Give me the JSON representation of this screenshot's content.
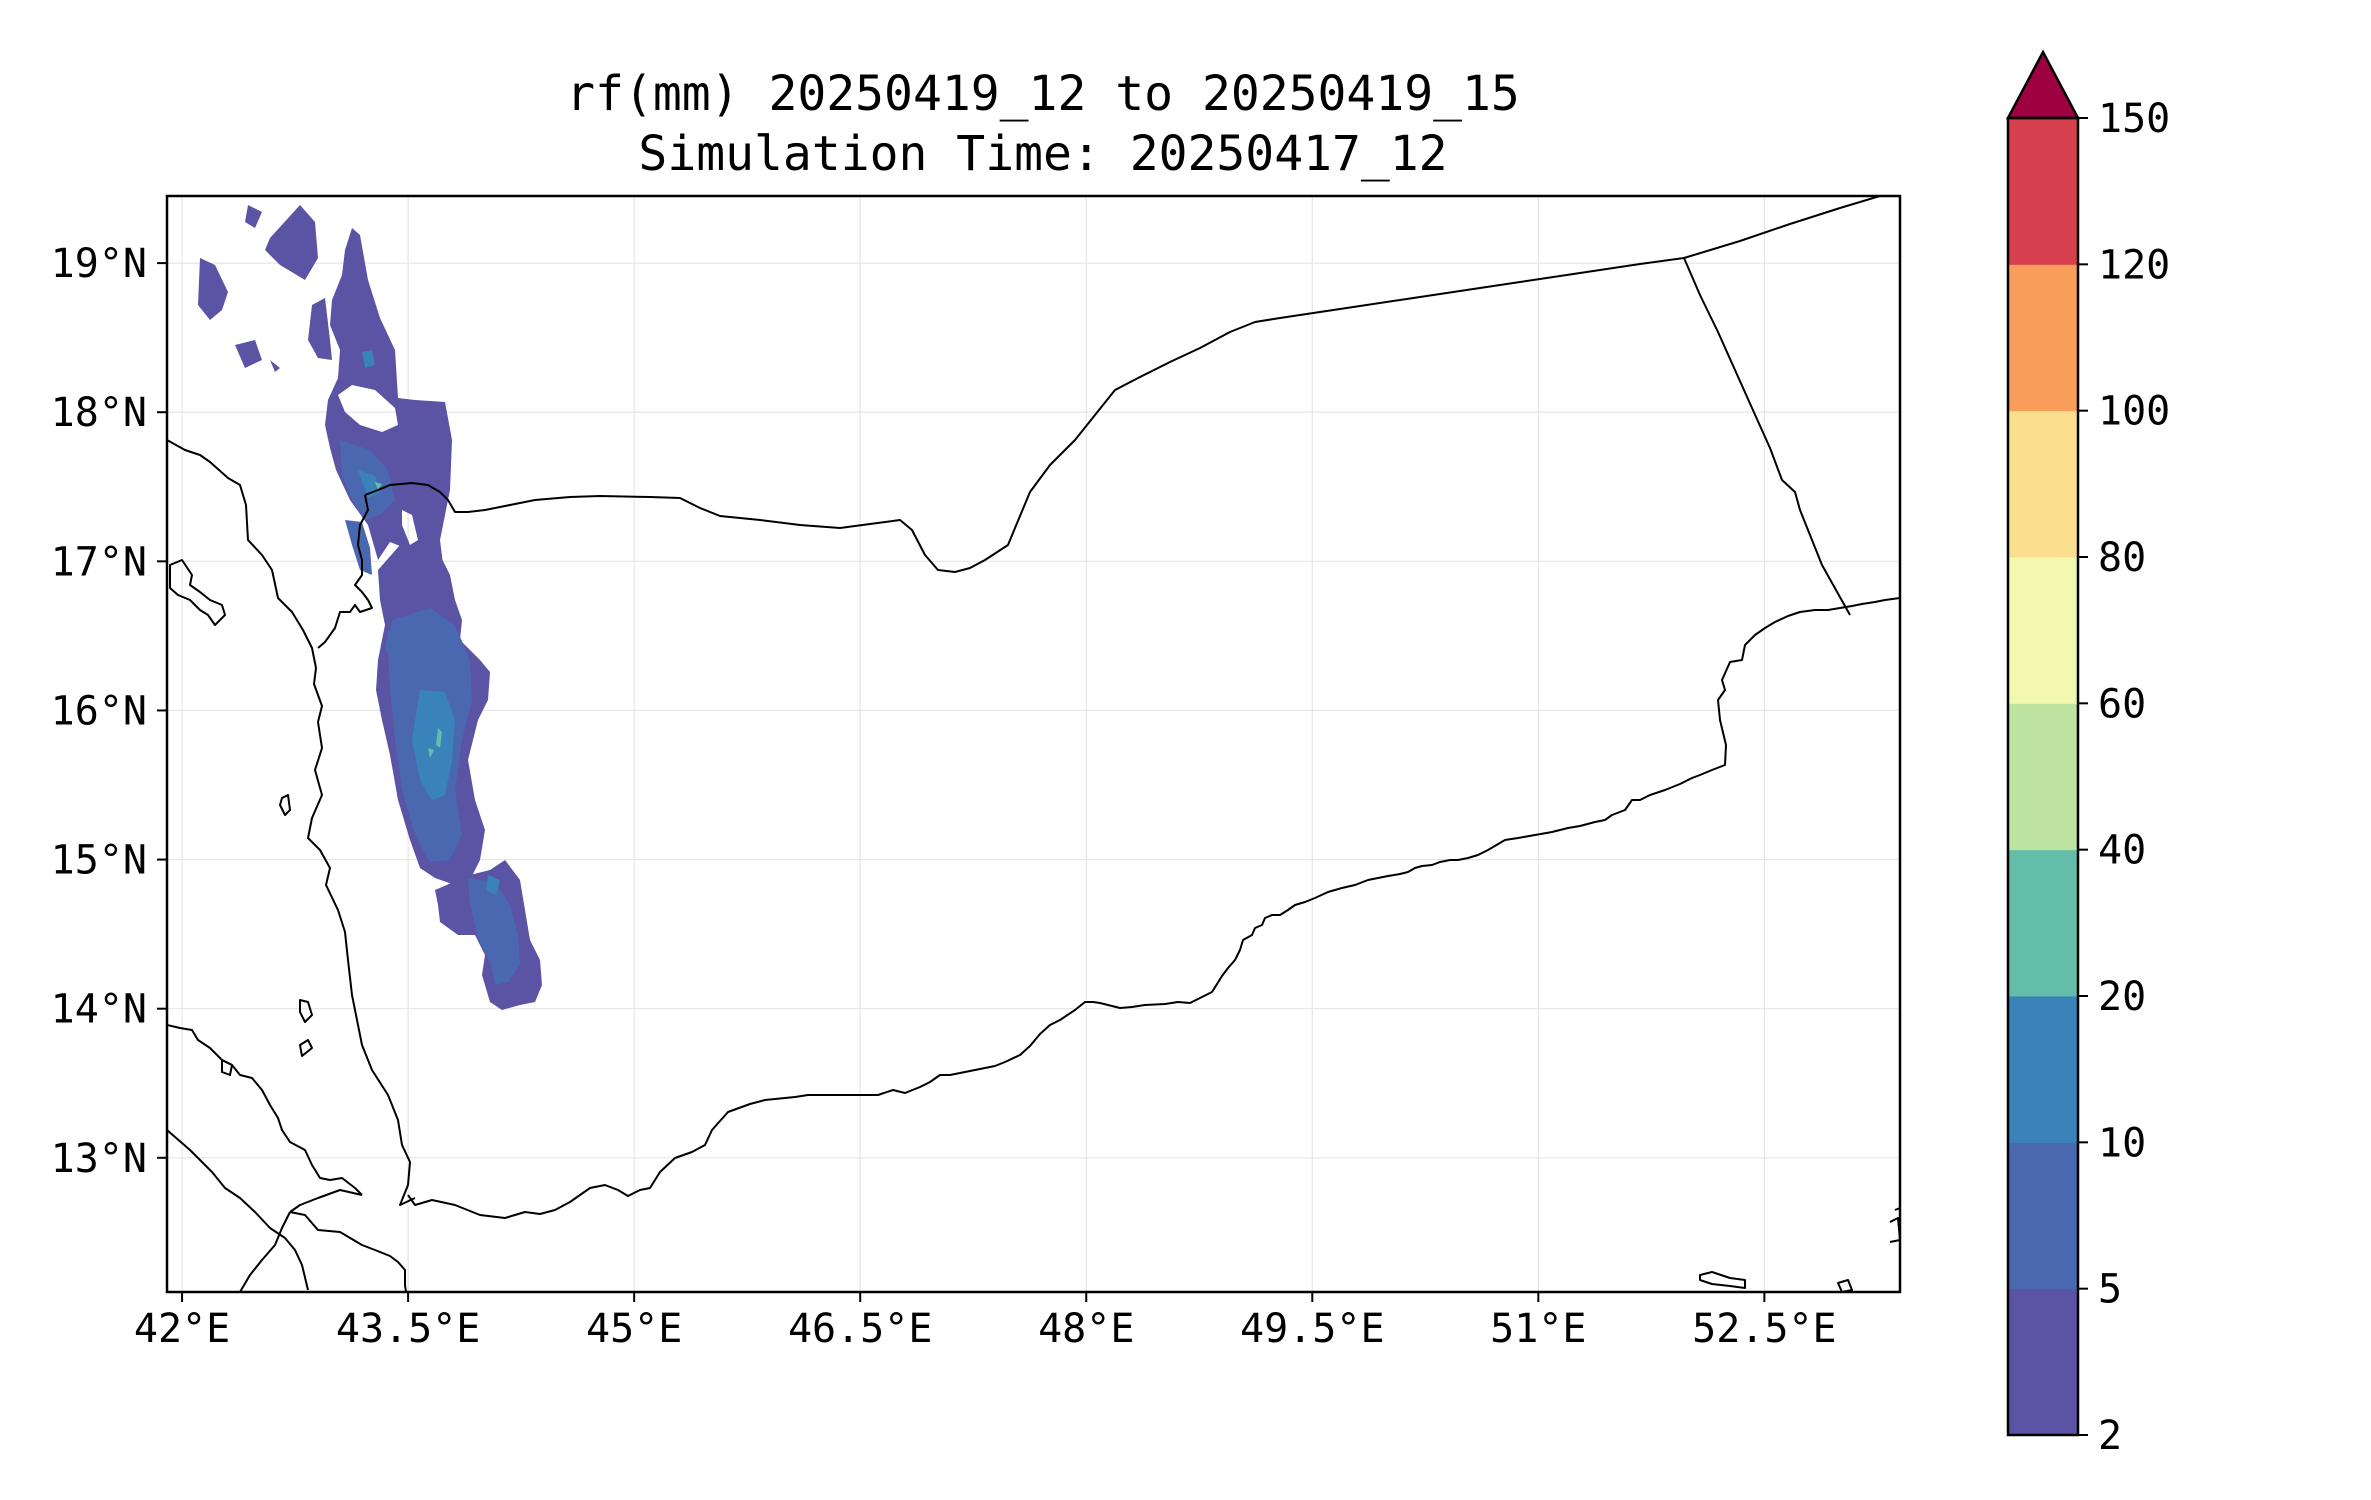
{
  "title": {
    "line1": "rf(mm) 20250419_12 to 20250419_15",
    "line2": "Simulation Time: 20250417_12"
  },
  "map": {
    "lon_range": [
      41.9,
      53.4
    ],
    "lat_range": [
      12.1,
      19.45
    ],
    "x_ticks": [
      {
        "value": 42.0,
        "label": "42°E"
      },
      {
        "value": 43.5,
        "label": "43.5°E"
      },
      {
        "value": 45.0,
        "label": "45°E"
      },
      {
        "value": 46.5,
        "label": "46.5°E"
      },
      {
        "value": 48.0,
        "label": "48°E"
      },
      {
        "value": 49.5,
        "label": "49.5°E"
      },
      {
        "value": 51.0,
        "label": "51°E"
      },
      {
        "value": 52.5,
        "label": "52.5°E"
      }
    ],
    "y_ticks": [
      {
        "value": 19,
        "label": "19°N"
      },
      {
        "value": 18,
        "label": "18°N"
      },
      {
        "value": 17,
        "label": "17°N"
      },
      {
        "value": 16,
        "label": "16°N"
      },
      {
        "value": 15,
        "label": "15°N"
      },
      {
        "value": 14,
        "label": "14°N"
      },
      {
        "value": 13,
        "label": "13°N"
      }
    ],
    "gridlines": true
  },
  "colorbar": {
    "levels": [
      "2",
      "5",
      "10",
      "20",
      "40",
      "60",
      "80",
      "100",
      "120",
      "150"
    ],
    "colors": [
      "#5b53a4",
      "#4a68b0",
      "#3a82ba",
      "#63bdaa",
      "#bce3a0",
      "#f2f8b0",
      "#fcdf8e",
      "#f99d5a",
      "#d6404e",
      "#9e0142"
    ],
    "extend": "max"
  },
  "rain_levels_shown": [
    "2-5",
    "5-10",
    "10-20",
    "20-40"
  ]
}
